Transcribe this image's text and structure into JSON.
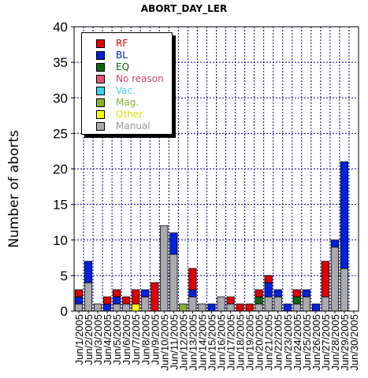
{
  "chart_data": {
    "type": "bar",
    "stacked": true,
    "title": "ABORT_DAY_LER",
    "ylabel": "Number of aborts",
    "xlabel": "",
    "ylim": [
      0,
      40
    ],
    "yticks": [
      0,
      5,
      10,
      15,
      20,
      25,
      30,
      35,
      40
    ],
    "grid": true,
    "legend_position": "top-left",
    "categories": [
      "Jun/1/2005",
      "Jun/2/2005",
      "Jun/3/2005",
      "Jun/4/2005",
      "Jun/5/2005",
      "Jun/6/2005",
      "Jun/7/2005",
      "Jun/8/2005",
      "Jun/9/2005",
      "Jun/10/2005",
      "Jun/11/2005",
      "Jun/12/2005",
      "Jun/13/2005",
      "Jun/14/2005",
      "Jun/15/2005",
      "Jun/16/2005",
      "Jun/17/2005",
      "Jun/18/2005",
      "Jun/19/2005",
      "Jun/20/2005",
      "Jun/21/2005",
      "Jun/22/2005",
      "Jun/23/2005",
      "Jun/24/2005",
      "Jun/25/2005",
      "Jun/26/2005",
      "Jun/27/2005",
      "Jun/28/2005",
      "Jun/29/2005",
      "Jun/30/2005"
    ],
    "series": [
      {
        "name": "Manual",
        "color": "#aaaaaa",
        "values": [
          1,
          4,
          1,
          0,
          1,
          1,
          0,
          2,
          0,
          12,
          8,
          0,
          2,
          1,
          0,
          2,
          1,
          0,
          0,
          1,
          2,
          2,
          0,
          1,
          2,
          0,
          2,
          9,
          6,
          0
        ]
      },
      {
        "name": "Other",
        "color": "#ffff00",
        "values": [
          0,
          0,
          0,
          0,
          0,
          0,
          1,
          0,
          0,
          0,
          0,
          0,
          0,
          0,
          0,
          0,
          0,
          0,
          0,
          0,
          0,
          0,
          0,
          0,
          0,
          0,
          0,
          0,
          0,
          0
        ]
      },
      {
        "name": "Mag.",
        "color": "#88b030",
        "values": [
          0,
          0,
          0,
          0,
          0,
          0,
          0,
          0,
          0,
          0,
          0,
          1,
          0,
          0,
          0,
          0,
          0,
          0,
          0,
          0,
          0,
          0,
          0,
          0,
          0,
          0,
          0,
          0,
          0,
          0
        ]
      },
      {
        "name": "Vac.",
        "color": "#44ccee",
        "values": [
          0,
          0,
          0,
          0,
          0,
          0,
          0,
          0,
          0,
          0,
          0,
          0,
          0,
          0,
          0,
          0,
          0,
          0,
          0,
          0,
          0,
          0,
          0,
          0,
          0,
          0,
          0,
          0,
          0,
          0
        ]
      },
      {
        "name": "No reason",
        "color": "#dd5577",
        "values": [
          0,
          0,
          0,
          0,
          0,
          0,
          0,
          0,
          0,
          0,
          0,
          0,
          0,
          0,
          0,
          0,
          0,
          0,
          0,
          0,
          0,
          0,
          0,
          0,
          0,
          0,
          0,
          0,
          0,
          0
        ]
      },
      {
        "name": "EQ",
        "color": "#116611",
        "values": [
          0,
          0,
          0,
          0,
          0,
          0,
          0,
          0,
          0,
          0,
          0,
          0,
          0,
          0,
          0,
          0,
          0,
          0,
          0,
          1,
          0,
          0,
          0,
          1,
          0,
          0,
          0,
          0,
          0,
          0
        ]
      },
      {
        "name": "BL",
        "color": "#0022dd",
        "values": [
          1,
          3,
          0,
          1,
          1,
          0,
          0,
          1,
          0,
          0,
          3,
          0,
          1,
          0,
          1,
          0,
          0,
          0,
          0,
          0,
          2,
          1,
          1,
          0,
          1,
          1,
          0,
          1,
          15,
          0
        ]
      },
      {
        "name": "RF",
        "color": "#dd0000",
        "values": [
          1,
          0,
          0,
          1,
          1,
          1,
          2,
          0,
          4,
          0,
          0,
          0,
          3,
          0,
          0,
          0,
          1,
          1,
          1,
          1,
          1,
          0,
          0,
          1,
          0,
          0,
          5,
          0,
          0,
          0
        ]
      }
    ]
  },
  "legend": {
    "items": [
      {
        "label": "RF",
        "color": "#dd0000",
        "text_color": "#dd0000"
      },
      {
        "label": "BL",
        "color": "#0022dd",
        "text_color": "#0022aa"
      },
      {
        "label": "EQ",
        "color": "#116611",
        "text_color": "#116611"
      },
      {
        "label": "No reason",
        "color": "#dd5577",
        "text_color": "#cc4477"
      },
      {
        "label": "Vac.",
        "color": "#44ccee",
        "text_color": "#44ccee"
      },
      {
        "label": "Mag.",
        "color": "#88b030",
        "text_color": "#88b030"
      },
      {
        "label": "Other",
        "color": "#ffff00",
        "text_color": "#dddd00"
      },
      {
        "label": "Manual",
        "color": "#aaaaaa",
        "text_color": "#999999"
      }
    ]
  }
}
